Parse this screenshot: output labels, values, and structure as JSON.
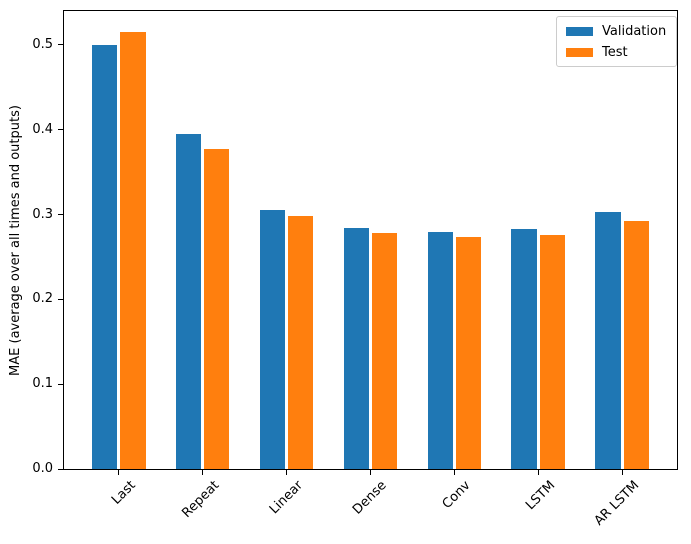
{
  "chart_data": {
    "type": "bar",
    "title": "",
    "xlabel": "",
    "ylabel": "MAE (average over all times and outputs)",
    "categories": [
      "Last",
      "Repeat",
      "Linear",
      "Dense",
      "Conv",
      "LSTM",
      "AR LSTM"
    ],
    "series": [
      {
        "name": "Validation",
        "color": "#1f77b4",
        "values": [
          0.5,
          0.395,
          0.305,
          0.284,
          0.28,
          0.283,
          0.303
        ]
      },
      {
        "name": "Test",
        "color": "#ff7f0e",
        "values": [
          0.515,
          0.377,
          0.298,
          0.278,
          0.273,
          0.276,
          0.292
        ]
      }
    ],
    "yticks": [
      0.0,
      0.1,
      0.2,
      0.3,
      0.4,
      0.5
    ],
    "ylim": [
      0,
      0.54
    ],
    "grid": false,
    "legend_position": "upper right",
    "xtick_rotation": 45
  }
}
